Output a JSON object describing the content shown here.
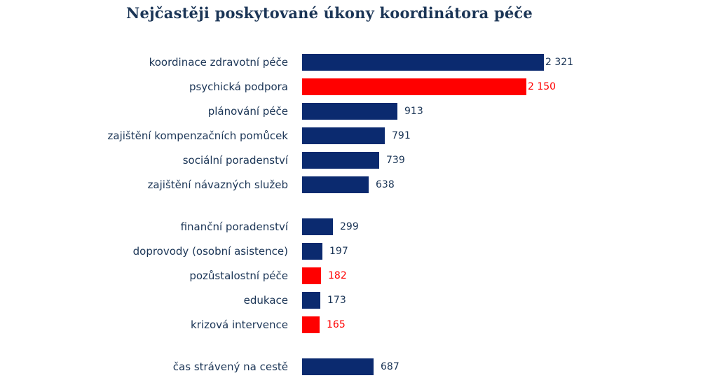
{
  "chart_data": {
    "type": "bar",
    "orientation": "horizontal",
    "title": "Nejčastěji poskytované úkony koordinátora péče",
    "xlabel": "",
    "ylabel": "",
    "xlim": [
      0,
      2321
    ],
    "grid": false,
    "legend": "none",
    "colors": {
      "primary": "#0b2a6f",
      "highlight": "#ff0000"
    },
    "bars": [
      {
        "category": "koordinace zdravotní péče",
        "value": 2321,
        "label": "2 321",
        "highlight": false,
        "group": 0
      },
      {
        "category": "psychická podpora",
        "value": 2150,
        "label": "2 150",
        "highlight": true,
        "group": 0
      },
      {
        "category": "plánování péče",
        "value": 913,
        "label": "913",
        "highlight": false,
        "group": 0
      },
      {
        "category": "zajištění kompenzačních pomůcek",
        "value": 791,
        "label": "791",
        "highlight": false,
        "group": 0
      },
      {
        "category": "sociální poradenství",
        "value": 739,
        "label": "739",
        "highlight": false,
        "group": 0
      },
      {
        "category": "zajištění návazných služeb",
        "value": 638,
        "label": "638",
        "highlight": false,
        "group": 0
      },
      {
        "category": "finanční poradenství",
        "value": 299,
        "label": "299",
        "highlight": false,
        "group": 1
      },
      {
        "category": "doprovody (osobní asistence)",
        "value": 197,
        "label": "197",
        "highlight": false,
        "group": 1
      },
      {
        "category": "pozůstalostní péče",
        "value": 182,
        "label": "182",
        "highlight": true,
        "group": 1
      },
      {
        "category": "edukace",
        "value": 173,
        "label": "173",
        "highlight": false,
        "group": 1
      },
      {
        "category": "krizová intervence",
        "value": 165,
        "label": "165",
        "highlight": true,
        "group": 1
      },
      {
        "category": "čas strávený na cestě",
        "value": 687,
        "label": "687",
        "highlight": false,
        "group": 2
      }
    ]
  }
}
